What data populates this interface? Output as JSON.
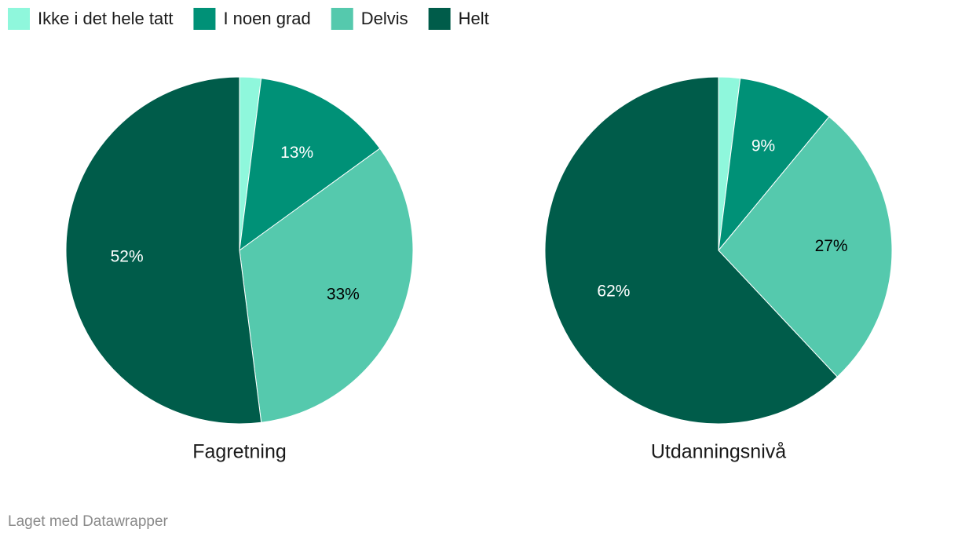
{
  "chart_data": [
    {
      "type": "pie",
      "title": "Fagretning",
      "categories": [
        "Ikke i det hele tatt",
        "I noen grad",
        "Delvis",
        "Helt"
      ],
      "values": [
        2,
        13,
        33,
        52
      ],
      "value_labels": [
        null,
        "13%",
        "33%",
        "52%"
      ],
      "colors": [
        "#8ff7dc",
        "#009177",
        "#55c9ad",
        "#005c4a"
      ],
      "legend": "top-left"
    },
    {
      "type": "pie",
      "title": "Utdanningsnivå",
      "categories": [
        "Ikke i det hele tatt",
        "I noen grad",
        "Delvis",
        "Helt"
      ],
      "values": [
        2,
        9,
        27,
        62
      ],
      "value_labels": [
        null,
        "9%",
        "27%",
        "62%"
      ],
      "colors": [
        "#8ff7dc",
        "#009177",
        "#55c9ad",
        "#005c4a"
      ]
    }
  ],
  "footer": "Laget med Datawrapper"
}
